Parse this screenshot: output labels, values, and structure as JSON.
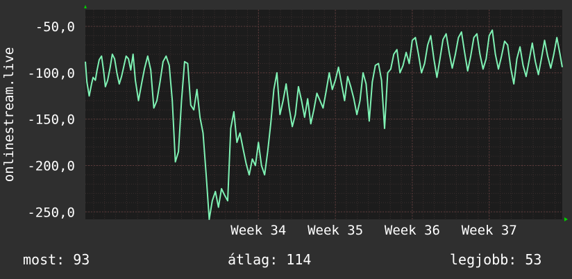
{
  "chart_data": {
    "type": "line",
    "ylabel": "onlinestream.live",
    "ylim": [
      -258,
      -32
    ],
    "yticks": [
      -50,
      -100,
      -150,
      -200,
      -250
    ],
    "ytick_labels": [
      "-50,0",
      "-100,0",
      "-150,0",
      "-200,0",
      "-250,0"
    ],
    "xlim": [
      31.75,
      37.95
    ],
    "xticks": [
      34,
      35,
      36,
      37
    ],
    "xtick_labels": [
      "Week 34",
      "Week 35",
      "Week 36",
      "Week 37"
    ],
    "grid": true,
    "colors": {
      "background": "#2f2f2f",
      "plot": "#1c1c1c",
      "line": "#7ff2b4",
      "grid": "#5a3a3a",
      "axis_marker": "#00cc00"
    },
    "series": [
      {
        "x": [
          31.75,
          31.77,
          31.8,
          31.83,
          31.85,
          31.88,
          31.9,
          31.93,
          31.96,
          31.99,
          32.01,
          32.04,
          32.07,
          32.1,
          32.13,
          32.16,
          32.19,
          32.22,
          32.25,
          32.28,
          32.31,
          32.34,
          32.37,
          32.4,
          32.44,
          32.48,
          32.52,
          32.56,
          32.6,
          32.64,
          32.68,
          32.72,
          32.76,
          32.8,
          32.84,
          32.88,
          32.92,
          32.96,
          33.0,
          33.04,
          33.08,
          33.12,
          33.16,
          33.2,
          33.24,
          33.28,
          33.32,
          33.36,
          33.4,
          33.44,
          33.48,
          33.52,
          33.56,
          33.6,
          33.64,
          33.68,
          33.72,
          33.76,
          33.8,
          33.84,
          33.88,
          33.92,
          33.96,
          34.0,
          34.04,
          34.08,
          34.12,
          34.16,
          34.2,
          34.24,
          34.28,
          34.32,
          34.36,
          34.4,
          34.44,
          34.48,
          34.52,
          34.56,
          34.6,
          34.64,
          34.68,
          34.72,
          34.76,
          34.8,
          34.84,
          34.88,
          34.92,
          34.96,
          35.0,
          35.04,
          35.08,
          35.12,
          35.16,
          35.2,
          35.24,
          35.28,
          35.32,
          35.36,
          35.4,
          35.44,
          35.48,
          35.52,
          35.56,
          35.6,
          35.64,
          35.68,
          35.72,
          35.76,
          35.8,
          35.84,
          35.88,
          35.92,
          35.96,
          36.0,
          36.04,
          36.08,
          36.12,
          36.16,
          36.2,
          36.24,
          36.28,
          36.32,
          36.36,
          36.4,
          36.44,
          36.48,
          36.52,
          36.56,
          36.6,
          36.64,
          36.68,
          36.72,
          36.76,
          36.8,
          36.84,
          36.88,
          36.92,
          36.96,
          37.0,
          37.04,
          37.08,
          37.12,
          37.16,
          37.2,
          37.24,
          37.28,
          37.32,
          37.36,
          37.4,
          37.44,
          37.48,
          37.52,
          37.56,
          37.6,
          37.64,
          37.68,
          37.72,
          37.76,
          37.8,
          37.84,
          37.88,
          37.92,
          37.95
        ],
        "y": [
          -88,
          -110,
          -125,
          -112,
          -105,
          -108,
          -98,
          -86,
          -82,
          -100,
          -115,
          -108,
          -95,
          -80,
          -85,
          -100,
          -112,
          -104,
          -93,
          -82,
          -85,
          -97,
          -80,
          -108,
          -130,
          -112,
          -95,
          -82,
          -97,
          -138,
          -130,
          -110,
          -88,
          -82,
          -92,
          -130,
          -196,
          -185,
          -130,
          -88,
          -90,
          -135,
          -140,
          -118,
          -148,
          -165,
          -210,
          -258,
          -238,
          -228,
          -245,
          -225,
          -232,
          -238,
          -160,
          -142,
          -175,
          -165,
          -182,
          -198,
          -210,
          -193,
          -200,
          -175,
          -200,
          -210,
          -185,
          -155,
          -118,
          -100,
          -145,
          -130,
          -112,
          -138,
          -158,
          -145,
          -115,
          -130,
          -148,
          -128,
          -155,
          -140,
          -122,
          -130,
          -138,
          -120,
          -100,
          -118,
          -108,
          -94,
          -112,
          -130,
          -104,
          -115,
          -128,
          -145,
          -130,
          -100,
          -112,
          -152,
          -110,
          -92,
          -90,
          -108,
          -160,
          -100,
          -96,
          -80,
          -75,
          -100,
          -92,
          -78,
          -90,
          -65,
          -62,
          -80,
          -100,
          -90,
          -70,
          -60,
          -85,
          -105,
          -85,
          -64,
          -58,
          -78,
          -95,
          -80,
          -62,
          -56,
          -78,
          -98,
          -82,
          -62,
          -58,
          -80,
          -96,
          -85,
          -60,
          -54,
          -80,
          -96,
          -82,
          -66,
          -70,
          -95,
          -112,
          -85,
          -72,
          -92,
          -104,
          -86,
          -68,
          -88,
          -102,
          -84,
          -65,
          -82,
          -95,
          -80,
          -62,
          -80,
          -94
        ],
        "values_note": ""
      }
    ]
  },
  "footer": {
    "now": "most: 93",
    "avg": "átlag: 114",
    "best": "legjobb: 53"
  }
}
